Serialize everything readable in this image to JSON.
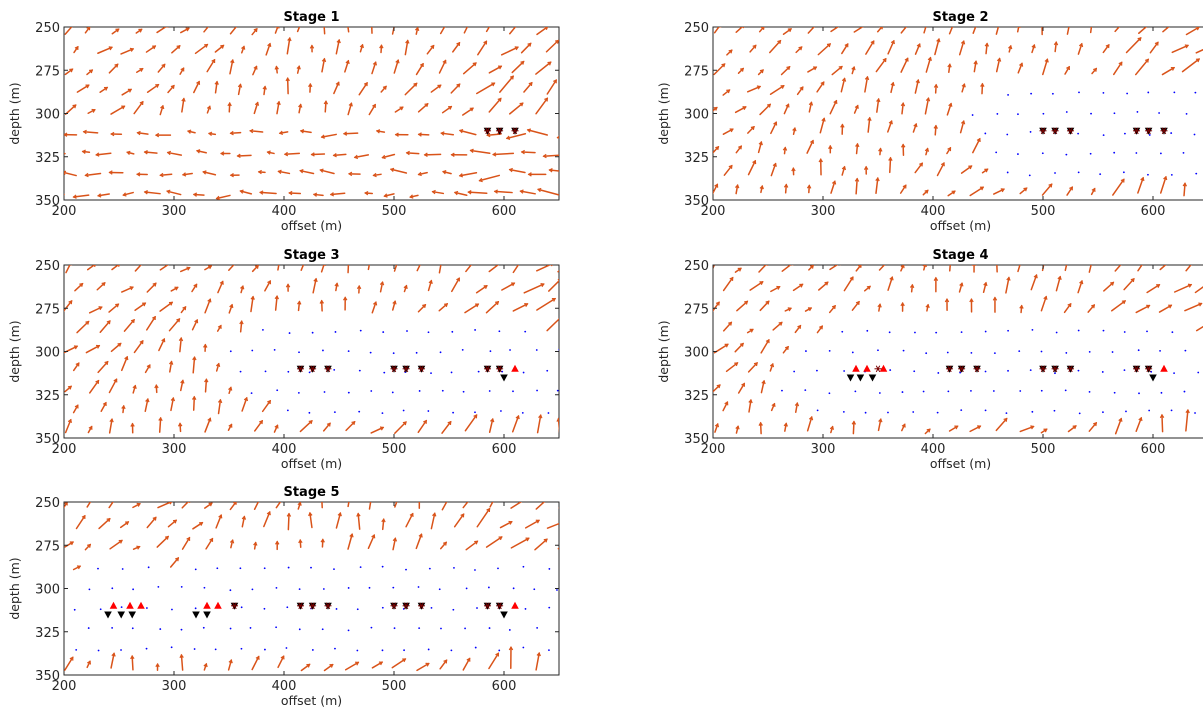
{
  "chart_data": [
    {
      "type": "quiver",
      "title": "Stage 1",
      "xlabel": "offset (m)",
      "ylabel": "depth (m)",
      "xlim": [
        200,
        650
      ],
      "ylim": [
        250,
        350
      ],
      "y_reversed": true,
      "x_ticks": [
        "200",
        "300",
        "400",
        "500",
        "600"
      ],
      "y_ticks": [
        "250",
        "275",
        "300",
        "325",
        "350"
      ],
      "arrow_color": "#d95319",
      "dot_color": "#0000ff",
      "source_markers": [
        [
          585,
          310
        ],
        [
          596,
          310
        ],
        [
          610,
          310
        ]
      ],
      "receiver_markers": [],
      "star_markers": [
        [
          585,
          310
        ],
        [
          596,
          310
        ],
        [
          610,
          310
        ]
      ]
    },
    {
      "type": "quiver",
      "title": "Stage 2",
      "xlabel": "offset (m)",
      "ylabel": "depth (m)",
      "xlim": [
        200,
        650
      ],
      "ylim": [
        250,
        350
      ],
      "y_reversed": true,
      "x_ticks": [
        "200",
        "300",
        "400",
        "500",
        "600"
      ],
      "y_ticks": [
        "250",
        "275",
        "300",
        "325",
        "350"
      ],
      "arrow_color": "#d95319",
      "dot_color": "#0000ff",
      "source_markers": [
        [
          500,
          310
        ],
        [
          511,
          310
        ],
        [
          525,
          310
        ],
        [
          585,
          310
        ],
        [
          596,
          310
        ],
        [
          610,
          310
        ]
      ],
      "receiver_markers": [],
      "star_markers": [
        [
          500,
          310
        ],
        [
          511,
          310
        ],
        [
          525,
          310
        ],
        [
          585,
          310
        ],
        [
          596,
          310
        ],
        [
          610,
          310
        ]
      ]
    },
    {
      "type": "quiver",
      "title": "Stage 3",
      "xlabel": "offset (m)",
      "ylabel": "depth (m)",
      "xlim": [
        200,
        650
      ],
      "ylim": [
        250,
        350
      ],
      "y_reversed": true,
      "x_ticks": [
        "200",
        "300",
        "400",
        "500",
        "600"
      ],
      "y_ticks": [
        "250",
        "275",
        "300",
        "325",
        "350"
      ],
      "arrow_color": "#d95319",
      "dot_color": "#0000ff",
      "source_markers": [
        [
          415,
          310
        ],
        [
          426,
          310
        ],
        [
          440,
          310
        ],
        [
          500,
          310
        ],
        [
          511,
          310
        ],
        [
          525,
          310
        ],
        [
          585,
          310
        ],
        [
          596,
          310
        ],
        [
          600,
          315
        ]
      ],
      "receiver_markers": [
        [
          610,
          310
        ]
      ],
      "star_markers": [
        [
          415,
          310
        ],
        [
          426,
          310
        ],
        [
          440,
          310
        ],
        [
          500,
          310
        ],
        [
          511,
          310
        ],
        [
          525,
          310
        ],
        [
          585,
          310
        ],
        [
          596,
          310
        ]
      ]
    },
    {
      "type": "quiver",
      "title": "Stage 4",
      "xlabel": "offset (m)",
      "ylabel": "depth (m)",
      "xlim": [
        200,
        650
      ],
      "ylim": [
        250,
        350
      ],
      "y_reversed": true,
      "x_ticks": [
        "200",
        "300",
        "400",
        "500",
        "600"
      ],
      "y_ticks": [
        "250",
        "275",
        "300",
        "325",
        "350"
      ],
      "arrow_color": "#d95319",
      "dot_color": "#0000ff",
      "source_markers": [
        [
          325,
          315
        ],
        [
          334,
          315
        ],
        [
          345,
          315
        ],
        [
          415,
          310
        ],
        [
          426,
          310
        ],
        [
          440,
          310
        ],
        [
          500,
          310
        ],
        [
          511,
          310
        ],
        [
          525,
          310
        ],
        [
          585,
          310
        ],
        [
          596,
          310
        ],
        [
          600,
          315
        ]
      ],
      "receiver_markers": [
        [
          330,
          310
        ],
        [
          340,
          310
        ],
        [
          355,
          310
        ],
        [
          610,
          310
        ]
      ],
      "star_markers": [
        [
          350,
          310
        ],
        [
          415,
          310
        ],
        [
          426,
          310
        ],
        [
          440,
          310
        ],
        [
          500,
          310
        ],
        [
          511,
          310
        ],
        [
          525,
          310
        ],
        [
          585,
          310
        ],
        [
          596,
          310
        ]
      ]
    },
    {
      "type": "quiver",
      "title": "Stage 5",
      "xlabel": "offset (m)",
      "ylabel": "depth (m)",
      "xlim": [
        200,
        650
      ],
      "ylim": [
        250,
        350
      ],
      "y_reversed": true,
      "x_ticks": [
        "200",
        "300",
        "400",
        "500",
        "600"
      ],
      "y_ticks": [
        "250",
        "275",
        "300",
        "325",
        "350"
      ],
      "arrow_color": "#d95319",
      "dot_color": "#0000ff",
      "source_markers": [
        [
          240,
          315
        ],
        [
          252,
          315
        ],
        [
          262,
          315
        ],
        [
          320,
          315
        ],
        [
          330,
          315
        ],
        [
          355,
          310
        ],
        [
          415,
          310
        ],
        [
          426,
          310
        ],
        [
          440,
          310
        ],
        [
          500,
          310
        ],
        [
          511,
          310
        ],
        [
          525,
          310
        ],
        [
          585,
          310
        ],
        [
          596,
          310
        ],
        [
          600,
          315
        ]
      ],
      "receiver_markers": [
        [
          245,
          310
        ],
        [
          260,
          310
        ],
        [
          270,
          310
        ],
        [
          330,
          310
        ],
        [
          340,
          310
        ],
        [
          610,
          310
        ]
      ],
      "star_markers": [
        [
          355,
          310
        ],
        [
          415,
          310
        ],
        [
          426,
          310
        ],
        [
          440,
          310
        ],
        [
          500,
          310
        ],
        [
          511,
          310
        ],
        [
          525,
          310
        ],
        [
          585,
          310
        ],
        [
          596,
          310
        ]
      ]
    }
  ]
}
